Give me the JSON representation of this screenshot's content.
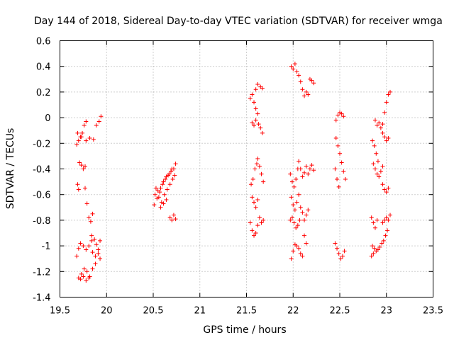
{
  "chart_data": {
    "type": "scatter",
    "title": "Day 144 of 2018, Sidereal Day-to-day VTEC variation (SDTVAR) for receiver wmga",
    "xlabel": "GPS time / hours",
    "ylabel": "SDTVAR / TECUs",
    "xlim": [
      19.5,
      23.5
    ],
    "ylim": [
      -1.4,
      0.6
    ],
    "xticks": [
      19.5,
      20,
      20.5,
      21,
      21.5,
      22,
      22.5,
      23,
      23.5
    ],
    "yticks": [
      -1.4,
      -1.2,
      -1,
      -0.8,
      -0.6,
      -0.4,
      -0.2,
      0,
      0.2,
      0.4,
      0.6
    ],
    "xtick_labels": [
      "19.5",
      "20",
      "20.5",
      "21",
      "21.5",
      "22",
      "22.5",
      "23",
      "23.5"
    ],
    "ytick_labels": [
      "-1.4",
      "-1.2",
      "-1",
      "-0.8",
      "-0.6",
      "-0.4",
      "-0.2",
      "0",
      "0.2",
      "0.4",
      "0.6"
    ],
    "grid": true,
    "marker": "+",
    "color": "#ff0000",
    "segments": [
      {
        "x": [
          19.69,
          19.73,
          19.76,
          19.78
        ],
        "y": [
          -0.12,
          -0.15,
          -0.06,
          -0.03
        ]
      },
      {
        "x": [
          19.78,
          19.82,
          19.86,
          19.89,
          19.92,
          19.94
        ],
        "y": [
          -0.18,
          -0.16,
          -0.17,
          -0.06,
          -0.03,
          0.01
        ]
      },
      {
        "x": [
          19.68,
          19.7,
          19.72,
          19.74
        ],
        "y": [
          -0.21,
          -0.18,
          -0.15,
          -0.12
        ]
      },
      {
        "x": [
          19.71,
          19.73,
          19.75,
          19.77
        ],
        "y": [
          -0.35,
          -0.37,
          -0.4,
          -0.38
        ]
      },
      {
        "x": [
          19.69,
          19.7
        ],
        "y": [
          -0.52,
          -0.56
        ]
      },
      {
        "x": [
          19.77,
          19.79,
          19.81,
          19.83,
          19.85
        ],
        "y": [
          -0.55,
          -0.67,
          -0.78,
          -0.81,
          -0.75
        ]
      },
      {
        "x": [
          19.68,
          19.7,
          19.72,
          19.75,
          19.78,
          19.81,
          19.84
        ],
        "y": [
          -1.08,
          -1.02,
          -0.98,
          -1.0,
          -1.03,
          -1.0,
          -0.96
        ]
      },
      {
        "x": [
          19.84,
          19.87,
          19.89,
          19.91,
          19.93
        ],
        "y": [
          -0.92,
          -0.95,
          -0.99,
          -1.03,
          -0.96
        ]
      },
      {
        "x": [
          19.85,
          19.88,
          19.91,
          19.93
        ],
        "y": [
          -1.05,
          -1.08,
          -1.06,
          -1.1
        ]
      },
      {
        "x": [
          19.7,
          19.73,
          19.76,
          19.79,
          19.82,
          19.85,
          19.88
        ],
        "y": [
          -1.25,
          -1.22,
          -1.18,
          -1.2,
          -1.24,
          -1.18,
          -1.14
        ]
      },
      {
        "x": [
          19.72,
          19.75,
          19.78,
          19.81
        ],
        "y": [
          -1.26,
          -1.24,
          -1.27,
          -1.25
        ]
      },
      {
        "x": [
          20.51,
          20.54,
          20.57,
          20.6,
          20.63,
          20.66,
          20.69,
          20.72,
          20.74
        ],
        "y": [
          -0.68,
          -0.63,
          -0.58,
          -0.52,
          -0.48,
          -0.45,
          -0.42,
          -0.4,
          -0.36
        ]
      },
      {
        "x": [
          20.52,
          20.55,
          20.58,
          20.61,
          20.64,
          20.67,
          20.7
        ],
        "y": [
          -0.6,
          -0.57,
          -0.55,
          -0.5,
          -0.46,
          -0.44,
          -0.4
        ]
      },
      {
        "x": [
          20.53,
          20.56,
          20.59,
          20.62,
          20.65,
          20.68,
          20.71,
          20.73
        ],
        "y": [
          -0.55,
          -0.62,
          -0.66,
          -0.6,
          -0.56,
          -0.52,
          -0.48,
          -0.45
        ]
      },
      {
        "x": [
          20.58,
          20.61,
          20.64
        ],
        "y": [
          -0.7,
          -0.67,
          -0.64
        ]
      },
      {
        "x": [
          20.68,
          20.7,
          20.72,
          20.74
        ],
        "y": [
          -0.78,
          -0.8,
          -0.76,
          -0.79
        ]
      },
      {
        "x": [
          21.54,
          21.56,
          21.58,
          21.6
        ],
        "y": [
          0.15,
          0.18,
          0.12,
          0.07
        ]
      },
      {
        "x": [
          21.56,
          21.58,
          21.6,
          21.62
        ],
        "y": [
          -0.04,
          -0.06,
          -0.02,
          0.03
        ]
      },
      {
        "x": [
          21.6,
          21.62,
          21.65,
          21.67
        ],
        "y": [
          0.22,
          0.26,
          0.24,
          0.23
        ]
      },
      {
        "x": [
          21.63,
          21.65,
          21.67
        ],
        "y": [
          -0.05,
          -0.08,
          -0.12
        ]
      },
      {
        "x": [
          21.55,
          21.57,
          21.59,
          21.61
        ],
        "y": [
          -0.52,
          -0.48,
          -0.4,
          -0.36
        ]
      },
      {
        "x": [
          21.62,
          21.64,
          21.66,
          21.68
        ],
        "y": [
          -0.32,
          -0.38,
          -0.44,
          -0.5
        ]
      },
      {
        "x": [
          21.56,
          21.58,
          21.6,
          21.62
        ],
        "y": [
          -0.62,
          -0.66,
          -0.7,
          -0.64
        ]
      },
      {
        "x": [
          21.54,
          21.56,
          21.58,
          21.6,
          21.62
        ],
        "y": [
          -0.82,
          -0.88,
          -0.92,
          -0.9,
          -0.84
        ]
      },
      {
        "x": [
          21.64,
          21.66,
          21.68
        ],
        "y": [
          -0.78,
          -0.82,
          -0.8
        ]
      },
      {
        "x": [
          21.98,
          22.0,
          22.02,
          22.04,
          22.06
        ],
        "y": [
          0.4,
          0.38,
          0.42,
          0.36,
          0.33
        ]
      },
      {
        "x": [
          22.08,
          22.1,
          22.12,
          22.14,
          22.16
        ],
        "y": [
          0.28,
          0.22,
          0.17,
          0.2,
          0.18
        ]
      },
      {
        "x": [
          22.18,
          22.2,
          22.22
        ],
        "y": [
          0.3,
          0.29,
          0.27
        ]
      },
      {
        "x": [
          21.97,
          21.99,
          22.01,
          22.03,
          22.05
        ],
        "y": [
          -0.44,
          -0.5,
          -0.54,
          -0.48,
          -0.4
        ]
      },
      {
        "x": [
          22.06,
          22.08,
          22.1,
          22.12,
          22.14,
          22.16,
          22.18,
          22.2,
          22.22
        ],
        "y": [
          -0.34,
          -0.4,
          -0.46,
          -0.43,
          -0.38,
          -0.44,
          -0.4,
          -0.37,
          -0.41
        ]
      },
      {
        "x": [
          21.98,
          22.0,
          22.02,
          22.04,
          22.06
        ],
        "y": [
          -0.62,
          -0.68,
          -0.72,
          -0.66,
          -0.6
        ]
      },
      {
        "x": [
          22.08,
          22.1,
          22.12,
          22.14,
          22.16
        ],
        "y": [
          -0.7,
          -0.74,
          -0.8,
          -0.76,
          -0.72
        ]
      },
      {
        "x": [
          21.97,
          21.99,
          22.01,
          22.03,
          22.05,
          22.07
        ],
        "y": [
          -0.8,
          -0.78,
          -0.82,
          -0.86,
          -0.84,
          -0.8
        ]
      },
      {
        "x": [
          21.98,
          22.0,
          22.02,
          22.04,
          22.06,
          22.08,
          22.1
        ],
        "y": [
          -1.1,
          -1.04,
          -0.99,
          -1.0,
          -1.02,
          -1.06,
          -1.08
        ]
      },
      {
        "x": [
          22.12,
          22.14
        ],
        "y": [
          -0.92,
          -0.98
        ]
      },
      {
        "x": [
          22.46,
          22.48,
          22.5,
          22.52,
          22.54
        ],
        "y": [
          -0.02,
          0.02,
          0.04,
          0.03,
          0.01
        ]
      },
      {
        "x": [
          22.46,
          22.48,
          22.5,
          22.52,
          22.54,
          22.56
        ],
        "y": [
          -0.16,
          -0.22,
          -0.28,
          -0.35,
          -0.42,
          -0.48
        ]
      },
      {
        "x": [
          22.45,
          22.47,
          22.49
        ],
        "y": [
          -0.4,
          -0.48,
          -0.54
        ]
      },
      {
        "x": [
          22.45,
          22.47,
          22.49,
          22.51,
          22.53,
          22.55
        ],
        "y": [
          -0.98,
          -1.02,
          -1.06,
          -1.1,
          -1.08,
          -1.04
        ]
      },
      {
        "x": [
          22.88,
          22.9,
          22.92,
          22.94,
          22.96,
          22.98,
          23.0,
          23.02,
          23.04
        ],
        "y": [
          -0.02,
          -0.06,
          -0.04,
          -0.08,
          -0.05,
          0.04,
          0.12,
          0.18,
          0.2
        ]
      },
      {
        "x": [
          22.85,
          22.87,
          22.89,
          22.91
        ],
        "y": [
          -0.18,
          -0.22,
          -0.28,
          -0.34
        ]
      },
      {
        "x": [
          22.96,
          22.98,
          23.0,
          23.02
        ],
        "y": [
          -0.12,
          -0.15,
          -0.18,
          -0.16
        ]
      },
      {
        "x": [
          22.86,
          22.88,
          22.9,
          22.92,
          22.94,
          22.96
        ],
        "y": [
          -0.36,
          -0.4,
          -0.44,
          -0.46,
          -0.42,
          -0.38
        ]
      },
      {
        "x": [
          22.96,
          22.98,
          23.0,
          23.02
        ],
        "y": [
          -0.52,
          -0.56,
          -0.58,
          -0.55
        ]
      },
      {
        "x": [
          22.84,
          22.86,
          22.88,
          22.9
        ],
        "y": [
          -0.78,
          -0.82,
          -0.86,
          -0.8
        ]
      },
      {
        "x": [
          22.96,
          22.98,
          23.0,
          23.02,
          23.04
        ],
        "y": [
          -0.82,
          -0.8,
          -0.78,
          -0.8,
          -0.76
        ]
      },
      {
        "x": [
          22.85,
          22.87,
          22.89,
          22.91,
          22.93,
          22.95,
          22.97,
          22.99,
          23.01
        ],
        "y": [
          -1.0,
          -1.02,
          -1.04,
          -1.03,
          -1.01,
          -0.98,
          -0.96,
          -0.92,
          -0.88
        ]
      },
      {
        "x": [
          22.84,
          22.86
        ],
        "y": [
          -1.08,
          -1.06
        ]
      }
    ]
  }
}
